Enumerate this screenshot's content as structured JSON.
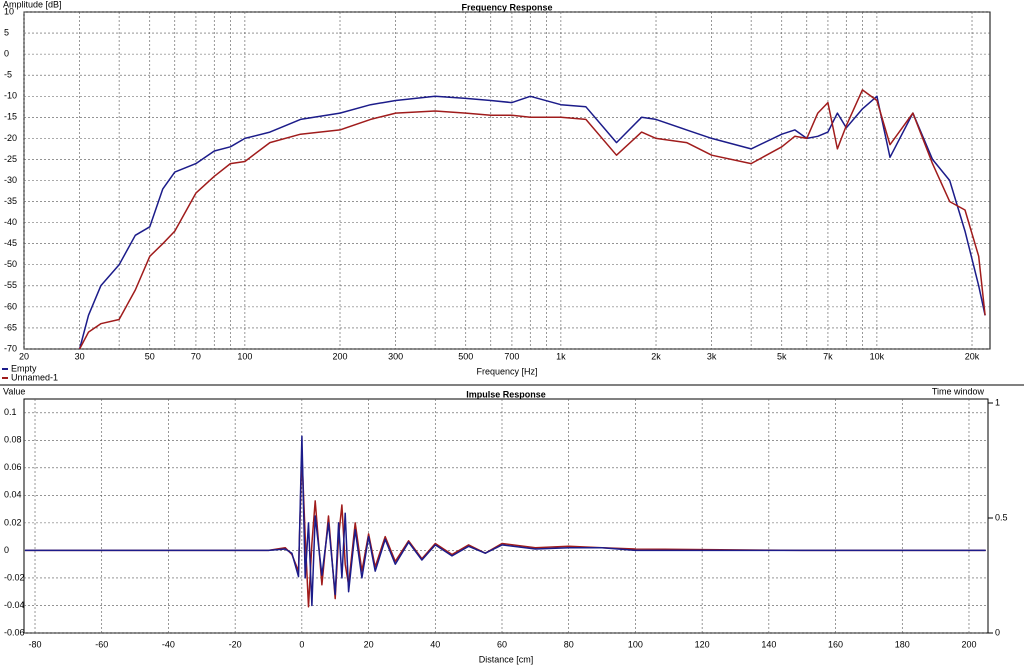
{
  "chart_data": [
    {
      "type": "line",
      "title": "Frequency Response",
      "y_label": "Amplitude [dB]",
      "x_label": "Frequency [Hz]",
      "xlog": true,
      "grid": true,
      "legend": "bottom-left",
      "xlim": [
        20,
        22800
      ],
      "ylim": [
        -70,
        10
      ],
      "xticks": [
        20,
        30,
        50,
        70,
        100,
        200,
        300,
        500,
        700,
        {
          "value": 1000,
          "label": "1k"
        },
        {
          "value": 2000,
          "label": "2k"
        },
        {
          "value": 3000,
          "label": "3k"
        },
        {
          "value": 5000,
          "label": "5k"
        },
        {
          "value": 7000,
          "label": "7k"
        },
        {
          "value": 10000,
          "label": "10k"
        },
        {
          "value": 20000,
          "label": "20k"
        }
      ],
      "xgrid_minor": [
        40,
        60,
        80,
        90,
        400,
        600,
        800,
        900,
        4000,
        6000,
        8000,
        9000
      ],
      "yticks": [
        10,
        5,
        0,
        -5,
        -10,
        -15,
        -20,
        -25,
        -30,
        -35,
        -40,
        -45,
        -50,
        -55,
        -60,
        -65,
        -70
      ],
      "x": [
        30,
        32,
        35,
        40,
        45,
        50,
        55,
        60,
        70,
        80,
        90,
        100,
        120,
        150,
        200,
        250,
        300,
        400,
        500,
        600,
        700,
        800,
        1000,
        1200,
        1500,
        1800,
        2000,
        2500,
        3000,
        4000,
        5000,
        5500,
        6000,
        6500,
        7000,
        7500,
        8000,
        9000,
        10000,
        11000,
        13000,
        15000,
        17000,
        19000,
        21000,
        22000
      ],
      "series": [
        {
          "name": "Empty",
          "color": "#1c1c8a",
          "values": [
            -70,
            -62,
            -55,
            -50,
            -43,
            -41,
            -32,
            -28,
            -26,
            -23,
            -22,
            -20,
            -18.5,
            -15.5,
            -14,
            -12,
            -11,
            -10,
            -10.5,
            -11,
            -11.5,
            -10,
            -12,
            -12.5,
            -21,
            -15,
            -15.5,
            -18,
            -20,
            -22.5,
            -19,
            -18,
            -20,
            -19.5,
            -18.5,
            -14,
            -17.5,
            -13,
            -10,
            -24.5,
            -14,
            -25,
            -30,
            -42,
            -55,
            -62
          ]
        },
        {
          "name": "Unnamed-1",
          "color": "#a01c1c",
          "values": [
            -70,
            -66,
            -64,
            -63,
            -56,
            -48,
            -45,
            -42,
            -33,
            -29,
            -26,
            -25.5,
            -21,
            -19,
            -18,
            -15.5,
            -14,
            -13.5,
            -14,
            -14.5,
            -14.5,
            -15,
            -15,
            -15.5,
            -24,
            -18.5,
            -20,
            -21,
            -24,
            -26,
            -22,
            -19.5,
            -20,
            -14,
            -11.5,
            -22.5,
            -17,
            -8.5,
            -11,
            -21.5,
            -14,
            -26,
            -35,
            -37,
            -48,
            -62
          ]
        }
      ]
    },
    {
      "type": "line",
      "title": "Impulse Response",
      "y_label": "Value",
      "x_label": "Distance [cm]",
      "y2_label": "Time window",
      "xlog": false,
      "grid": true,
      "xlim": [
        -83.3,
        205.7
      ],
      "ylim": [
        -0.06,
        0.11
      ],
      "y2lim": [
        0,
        1
      ],
      "xticks": [
        -80,
        -60,
        -40,
        -20,
        0,
        20,
        40,
        60,
        80,
        100,
        120,
        140,
        160,
        180,
        200
      ],
      "yticks": [
        0.1,
        0.08,
        0.06,
        0.04,
        0.02,
        0,
        -0.02,
        -0.04,
        -0.06
      ],
      "y2ticks": [
        0,
        0.5,
        1
      ],
      "x": [
        -83,
        -10,
        -5,
        -3,
        -1,
        0,
        1,
        2,
        3,
        4,
        6,
        8,
        10,
        11,
        12,
        13,
        14,
        16,
        18,
        20,
        22,
        25,
        28,
        32,
        36,
        40,
        45,
        50,
        55,
        60,
        70,
        80,
        90,
        100,
        150,
        205
      ],
      "series": [
        {
          "color": "#a01c1c",
          "values": [
            0,
            0,
            0.002,
            -0.003,
            -0.015,
            0.07,
            0.01,
            -0.041,
            0.005,
            0.036,
            -0.025,
            0.025,
            -0.035,
            0.01,
            0.033,
            -0.01,
            -0.025,
            0.02,
            -0.015,
            0.012,
            -0.012,
            0.01,
            -0.008,
            0.007,
            -0.006,
            0.005,
            -0.003,
            0.004,
            -0.002,
            0.005,
            0.002,
            0.003,
            0.002,
            0.001,
            0,
            0
          ]
        },
        {
          "color": "#1c1c8a",
          "values": [
            0,
            0,
            0.001,
            -0.002,
            -0.019,
            0.083,
            -0.02,
            0.02,
            -0.04,
            0.025,
            -0.018,
            0.02,
            -0.032,
            0.02,
            -0.02,
            0.027,
            -0.03,
            0.015,
            -0.02,
            0.01,
            -0.015,
            0.008,
            -0.01,
            0.006,
            -0.007,
            0.004,
            -0.004,
            0.003,
            -0.002,
            0.004,
            0.001,
            0.002,
            0.002,
            0,
            0,
            0
          ]
        }
      ]
    }
  ]
}
